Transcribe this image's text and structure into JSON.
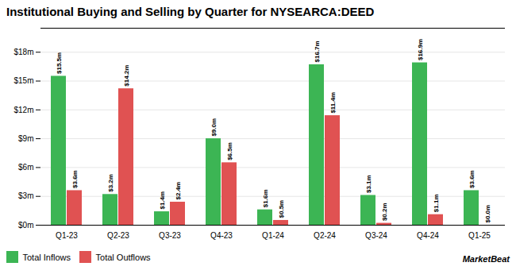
{
  "chart_data": {
    "type": "bar",
    "title": "Institutional Buying and Selling by Quarter for NYSEARCA:DEED",
    "categories": [
      "Q1-23",
      "Q2-23",
      "Q3-23",
      "Q4-23",
      "Q1-24",
      "Q2-24",
      "Q3-24",
      "Q4-24",
      "Q1-25"
    ],
    "series": [
      {
        "name": "Total Inflows",
        "color": "#3cb554",
        "values": [
          15.5,
          3.2,
          1.4,
          9.0,
          1.6,
          16.7,
          3.1,
          16.9,
          3.6
        ],
        "value_labels": [
          "$15.5m",
          "$3.2m",
          "$1.4m",
          "$9.0m",
          "$1.6m",
          "$16.7m",
          "$3.1m",
          "$16.9m",
          "$3.6m"
        ]
      },
      {
        "name": "Total Outflows",
        "color": "#e05252",
        "values": [
          3.6,
          14.2,
          2.4,
          6.5,
          0.5,
          11.4,
          0.2,
          1.1,
          0.0
        ],
        "value_labels": [
          "$3.6m",
          "$14.2m",
          "$2.4m",
          "$6.5m",
          "$0.5m",
          "$11.4m",
          "$0.2m",
          "$1.1m",
          "$0.0m"
        ]
      }
    ],
    "ylim": [
      0,
      20.5
    ],
    "yticks": [
      {
        "value": 0,
        "label": "$0m"
      },
      {
        "value": 3,
        "label": "$3m"
      },
      {
        "value": 6,
        "label": "$6m"
      },
      {
        "value": 9,
        "label": "$9m"
      },
      {
        "value": 12,
        "label": "$12m"
      },
      {
        "value": 15,
        "label": "$15m"
      },
      {
        "value": 18,
        "label": "$18m"
      }
    ],
    "grid": true,
    "data_labels": true,
    "legend": "bottom",
    "annotations": [
      "MarketBeat"
    ]
  }
}
